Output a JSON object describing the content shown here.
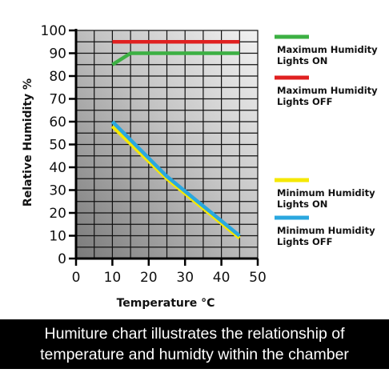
{
  "chart_data": {
    "type": "line",
    "xlabel": "Temperature °C",
    "ylabel": "Relative Humidity %",
    "xlim": [
      0,
      50
    ],
    "ylim": [
      0,
      100
    ],
    "x_ticks": [
      0,
      10,
      20,
      30,
      40,
      50
    ],
    "y_ticks": [
      0,
      10,
      20,
      30,
      40,
      50,
      60,
      70,
      80,
      90,
      100
    ],
    "grid": true,
    "legend_position": "right",
    "series": [
      {
        "name": "Maximum Humidity Lights ON",
        "color": "#3cb043",
        "x": [
          10,
          15,
          45
        ],
        "y": [
          85,
          90,
          90
        ]
      },
      {
        "name": "Maximum Humidity Lights OFF",
        "color": "#e02020",
        "x": [
          10,
          45
        ],
        "y": [
          95,
          95
        ]
      },
      {
        "name": "Minimum Humidity Lights ON",
        "color": "#f5e800",
        "x": [
          10,
          25,
          45
        ],
        "y": [
          58,
          35,
          9
        ]
      },
      {
        "name": "Minimum Humidity Lights OFF",
        "color": "#2aa7df",
        "x": [
          10,
          25,
          45
        ],
        "y": [
          60,
          36,
          10
        ]
      }
    ],
    "legend": [
      {
        "line1": "Maximum Humidity",
        "line2": "Lights ON",
        "color": "#3cb043"
      },
      {
        "line1": "Maximum Humidity",
        "line2": "Lights OFF",
        "color": "#e02020"
      },
      {
        "line1": "Minimum Humidity",
        "line2": "Lights ON",
        "color": "#f5e800"
      },
      {
        "line1": "Minimum Humidity",
        "line2": "Lights OFF",
        "color": "#2aa7df"
      }
    ]
  },
  "caption": {
    "line1": "Humiture chart illustrates the relationship of",
    "line2": "temperature and humidty within the chamber"
  }
}
